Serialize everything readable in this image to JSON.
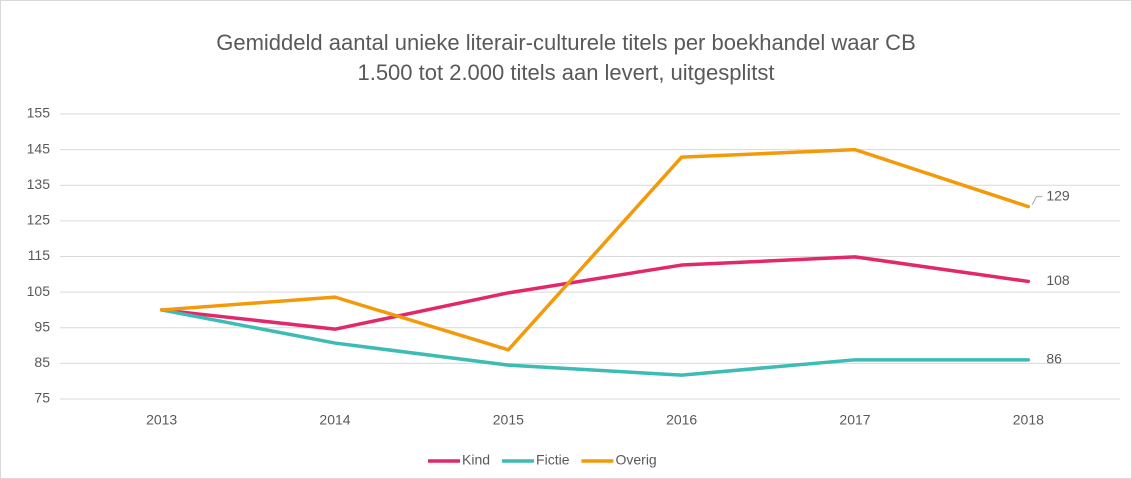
{
  "chart_data": {
    "type": "line",
    "title": [
      "Gemiddeld aantal unieke literair-culturele titels per boekhandel waar CB",
      "1.500 tot 2.000  titels aan levert, uitgesplitst"
    ],
    "categories": [
      "2013",
      "2014",
      "2015",
      "2016",
      "2017",
      "2018"
    ],
    "series": [
      {
        "name": "Kind",
        "color": "#e2276a",
        "values": [
          100,
          94.6,
          104.8,
          112.6,
          114.9,
          108
        ]
      },
      {
        "name": "Fictie",
        "color": "#3dbbb5",
        "values": [
          100,
          90.7,
          84.5,
          81.7,
          86,
          86
        ]
      },
      {
        "name": "Overig",
        "color": "#f39a0b",
        "values": [
          100,
          103.6,
          88.8,
          142.9,
          145,
          129
        ]
      }
    ],
    "ylim": [
      75,
      155
    ],
    "yticks": [
      75,
      85,
      95,
      105,
      115,
      125,
      135,
      145,
      155
    ],
    "grid": true,
    "legend": "bottom"
  }
}
